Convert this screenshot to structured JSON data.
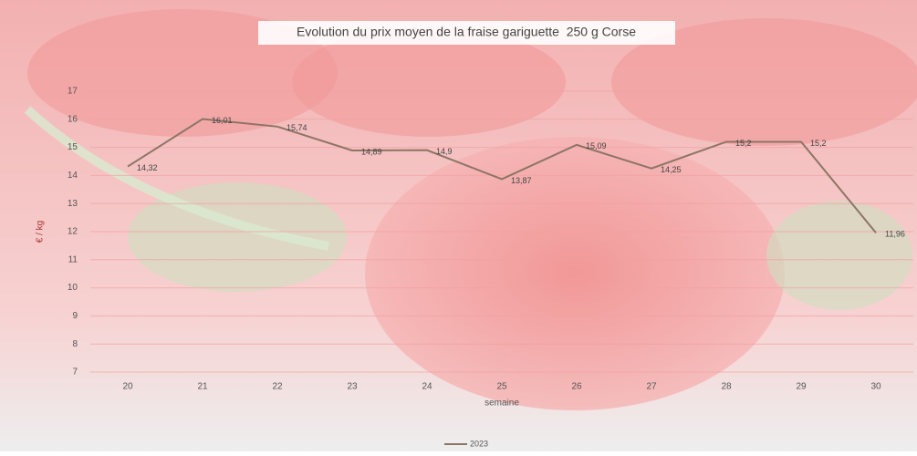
{
  "chart_data": {
    "type": "line",
    "title": "Evolution du prix moyen de la fraise gariguette  250 g Corse",
    "x_label": "semaine",
    "y_label": "€ / kg",
    "categories": [
      "20",
      "21",
      "22",
      "23",
      "24",
      "25",
      "26",
      "27",
      "28",
      "29",
      "30"
    ],
    "series": [
      {
        "name": "2023",
        "color": "#8c7565",
        "values": [
          14.32,
          16.01,
          15.74,
          14.89,
          14.9,
          13.87,
          15.09,
          14.25,
          15.2,
          15.2,
          11.96
        ],
        "value_labels": [
          "14,32",
          "16,01",
          "15,74",
          "14,89",
          "14,9",
          "13,87",
          "15,09",
          "14,25",
          "15,2",
          "15,2",
          "11,96"
        ]
      }
    ],
    "ylim": [
      7,
      17
    ],
    "yticks": [
      7,
      8,
      9,
      10,
      11,
      12,
      13,
      14,
      15,
      16,
      17
    ],
    "grid": true,
    "legend": "bottom"
  }
}
